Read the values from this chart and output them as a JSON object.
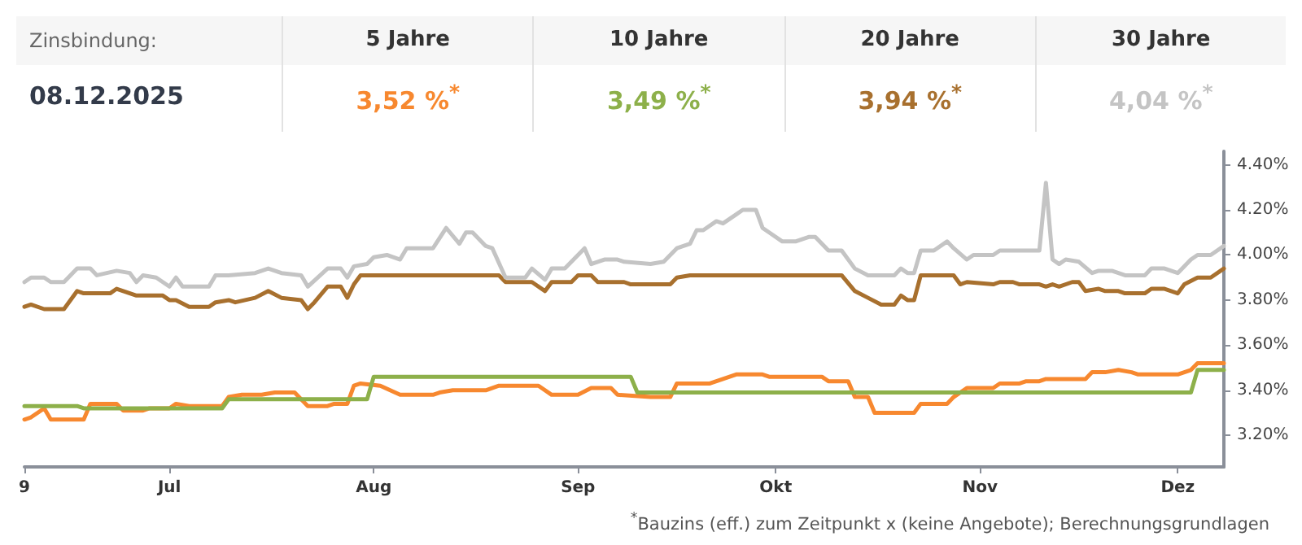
{
  "chart_data": {
    "type": "line",
    "xlim": [
      "2025-06-09",
      "2025-12-08"
    ],
    "xticks": [
      {
        "value": "2025-06-09",
        "label": "9"
      },
      {
        "value": "2025-07-01",
        "label": "Jul"
      },
      {
        "value": "2025-08-01",
        "label": "Aug"
      },
      {
        "value": "2025-09-01",
        "label": "Sep"
      },
      {
        "value": "2025-10-01",
        "label": "Okt"
      },
      {
        "value": "2025-11-01",
        "label": "Nov"
      },
      {
        "value": "2025-12-01",
        "label": "Dez"
      }
    ],
    "ylim": [
      3.06,
      4.46
    ],
    "yticks": [
      {
        "value": 3.2,
        "label": "3.20%"
      },
      {
        "value": 3.4,
        "label": "3.40%"
      },
      {
        "value": 3.6,
        "label": "3.60%"
      },
      {
        "value": 3.8,
        "label": "3.80%"
      },
      {
        "value": 4.0,
        "label": "4.00%"
      },
      {
        "value": 4.2,
        "label": "4.20%"
      },
      {
        "value": 4.4,
        "label": "4.40%"
      }
    ],
    "grid": false,
    "marker": "none",
    "line_style": "solid",
    "series": [
      {
        "color": "#f7882f",
        "x": [
          "2025-06-09",
          "2025-06-10",
          "2025-06-12",
          "2025-06-13",
          "2025-06-18",
          "2025-06-19",
          "2025-06-23",
          "2025-06-24",
          "2025-06-27",
          "2025-06-28",
          "2025-07-01",
          "2025-07-02",
          "2025-07-04",
          "2025-07-09",
          "2025-07-10",
          "2025-07-12",
          "2025-07-15",
          "2025-07-17",
          "2025-07-20",
          "2025-07-22",
          "2025-07-25",
          "2025-07-26",
          "2025-07-28",
          "2025-07-29",
          "2025-07-30",
          "2025-08-02",
          "2025-08-05",
          "2025-08-10",
          "2025-08-11",
          "2025-08-13",
          "2025-08-18",
          "2025-08-20",
          "2025-08-25",
          "2025-08-26",
          "2025-08-28",
          "2025-09-01",
          "2025-09-03",
          "2025-09-06",
          "2025-09-07",
          "2025-09-12",
          "2025-09-15",
          "2025-09-16",
          "2025-09-21",
          "2025-09-23",
          "2025-09-25",
          "2025-09-29",
          "2025-09-30",
          "2025-10-08",
          "2025-10-09",
          "2025-10-12",
          "2025-10-13",
          "2025-10-15",
          "2025-10-16",
          "2025-10-22",
          "2025-10-23",
          "2025-10-27",
          "2025-10-28",
          "2025-10-30",
          "2025-11-03",
          "2025-11-04",
          "2025-11-07",
          "2025-11-08",
          "2025-11-10",
          "2025-11-11",
          "2025-11-17",
          "2025-11-18",
          "2025-11-20",
          "2025-11-22",
          "2025-11-24",
          "2025-11-25",
          "2025-12-01",
          "2025-12-03",
          "2025-12-04",
          "2025-12-08"
        ],
        "values": [
          3.27,
          3.28,
          3.32,
          3.27,
          3.27,
          3.34,
          3.34,
          3.31,
          3.31,
          3.32,
          3.32,
          3.34,
          3.33,
          3.33,
          3.37,
          3.38,
          3.38,
          3.39,
          3.39,
          3.33,
          3.33,
          3.34,
          3.34,
          3.42,
          3.43,
          3.42,
          3.38,
          3.38,
          3.39,
          3.4,
          3.4,
          3.42,
          3.42,
          3.42,
          3.38,
          3.38,
          3.41,
          3.41,
          3.38,
          3.37,
          3.37,
          3.43,
          3.43,
          3.45,
          3.47,
          3.47,
          3.46,
          3.46,
          3.44,
          3.44,
          3.37,
          3.37,
          3.3,
          3.3,
          3.34,
          3.34,
          3.37,
          3.41,
          3.41,
          3.43,
          3.43,
          3.44,
          3.44,
          3.45,
          3.45,
          3.48,
          3.48,
          3.49,
          3.48,
          3.47,
          3.47,
          3.49,
          3.52,
          3.52
        ]
      },
      {
        "color": "#8db04a",
        "x": [
          "2025-06-09",
          "2025-06-17",
          "2025-06-18",
          "2025-07-09",
          "2025-07-10",
          "2025-07-31",
          "2025-08-01",
          "2025-09-09",
          "2025-09-10",
          "2025-12-03",
          "2025-12-04",
          "2025-12-08"
        ],
        "values": [
          3.33,
          3.33,
          3.32,
          3.32,
          3.36,
          3.36,
          3.46,
          3.46,
          3.39,
          3.39,
          3.49,
          3.49
        ]
      },
      {
        "color": "#a8702e",
        "x": [
          "2025-06-09",
          "2025-06-10",
          "2025-06-12",
          "2025-06-15",
          "2025-06-17",
          "2025-06-18",
          "2025-06-22",
          "2025-06-23",
          "2025-06-26",
          "2025-06-30",
          "2025-07-01",
          "2025-07-02",
          "2025-07-04",
          "2025-07-07",
          "2025-07-08",
          "2025-07-10",
          "2025-07-11",
          "2025-07-14",
          "2025-07-16",
          "2025-07-18",
          "2025-07-21",
          "2025-07-22",
          "2025-07-23",
          "2025-07-25",
          "2025-07-27",
          "2025-07-28",
          "2025-07-29",
          "2025-07-30",
          "2025-08-20",
          "2025-08-21",
          "2025-08-25",
          "2025-08-27",
          "2025-08-28",
          "2025-08-31",
          "2025-09-01",
          "2025-09-03",
          "2025-09-04",
          "2025-09-08",
          "2025-09-09",
          "2025-09-15",
          "2025-09-16",
          "2025-09-18",
          "2025-10-11",
          "2025-10-13",
          "2025-10-15",
          "2025-10-17",
          "2025-10-19",
          "2025-10-20",
          "2025-10-21",
          "2025-10-22",
          "2025-10-23",
          "2025-10-28",
          "2025-10-29",
          "2025-10-30",
          "2025-11-03",
          "2025-11-04",
          "2025-11-06",
          "2025-11-07",
          "2025-11-10",
          "2025-11-11",
          "2025-11-12",
          "2025-11-13",
          "2025-11-15",
          "2025-11-16",
          "2025-11-17",
          "2025-11-19",
          "2025-11-20",
          "2025-11-22",
          "2025-11-23",
          "2025-11-26",
          "2025-11-27",
          "2025-11-29",
          "2025-12-01",
          "2025-12-02",
          "2025-12-04",
          "2025-12-06",
          "2025-12-08"
        ],
        "values": [
          3.77,
          3.78,
          3.76,
          3.76,
          3.84,
          3.83,
          3.83,
          3.85,
          3.82,
          3.82,
          3.8,
          3.8,
          3.77,
          3.77,
          3.79,
          3.8,
          3.79,
          3.81,
          3.84,
          3.81,
          3.8,
          3.76,
          3.79,
          3.86,
          3.86,
          3.81,
          3.87,
          3.91,
          3.91,
          3.88,
          3.88,
          3.84,
          3.88,
          3.88,
          3.91,
          3.91,
          3.88,
          3.88,
          3.87,
          3.87,
          3.9,
          3.91,
          3.91,
          3.84,
          3.81,
          3.78,
          3.78,
          3.82,
          3.8,
          3.8,
          3.91,
          3.91,
          3.87,
          3.88,
          3.87,
          3.88,
          3.88,
          3.87,
          3.87,
          3.86,
          3.87,
          3.86,
          3.88,
          3.88,
          3.84,
          3.85,
          3.84,
          3.84,
          3.83,
          3.83,
          3.85,
          3.85,
          3.83,
          3.87,
          3.9,
          3.9,
          3.94
        ]
      },
      {
        "color": "#c4c4c4",
        "x": [
          "2025-06-09",
          "2025-06-10",
          "2025-06-12",
          "2025-06-13",
          "2025-06-15",
          "2025-06-17",
          "2025-06-19",
          "2025-06-20",
          "2025-06-23",
          "2025-06-25",
          "2025-06-26",
          "2025-06-27",
          "2025-06-29",
          "2025-07-01",
          "2025-07-02",
          "2025-07-03",
          "2025-07-07",
          "2025-07-08",
          "2025-07-10",
          "2025-07-14",
          "2025-07-16",
          "2025-07-18",
          "2025-07-21",
          "2025-07-22",
          "2025-07-25",
          "2025-07-27",
          "2025-07-28",
          "2025-07-29",
          "2025-07-31",
          "2025-08-01",
          "2025-08-03",
          "2025-08-05",
          "2025-08-06",
          "2025-08-10",
          "2025-08-12",
          "2025-08-14",
          "2025-08-15",
          "2025-08-16",
          "2025-08-18",
          "2025-08-19",
          "2025-08-21",
          "2025-08-24",
          "2025-08-25",
          "2025-08-27",
          "2025-08-28",
          "2025-08-30",
          "2025-09-02",
          "2025-09-03",
          "2025-09-05",
          "2025-09-07",
          "2025-09-08",
          "2025-09-12",
          "2025-09-14",
          "2025-09-16",
          "2025-09-18",
          "2025-09-19",
          "2025-09-20",
          "2025-09-22",
          "2025-09-23",
          "2025-09-25",
          "2025-09-26",
          "2025-09-28",
          "2025-09-29",
          "2025-09-30",
          "2025-10-02",
          "2025-10-04",
          "2025-10-06",
          "2025-10-07",
          "2025-10-09",
          "2025-10-11",
          "2025-10-13",
          "2025-10-15",
          "2025-10-19",
          "2025-10-20",
          "2025-10-21",
          "2025-10-22",
          "2025-10-23",
          "2025-10-25",
          "2025-10-27",
          "2025-10-28",
          "2025-10-30",
          "2025-10-31",
          "2025-11-03",
          "2025-11-04",
          "2025-11-10",
          "2025-11-11",
          "2025-11-12",
          "2025-11-13",
          "2025-11-14",
          "2025-11-16",
          "2025-11-18",
          "2025-11-19",
          "2025-11-21",
          "2025-11-23",
          "2025-11-26",
          "2025-11-27",
          "2025-11-29",
          "2025-12-01",
          "2025-12-03",
          "2025-12-04",
          "2025-12-06",
          "2025-12-08"
        ],
        "values": [
          3.88,
          3.9,
          3.9,
          3.88,
          3.88,
          3.94,
          3.94,
          3.91,
          3.93,
          3.92,
          3.88,
          3.91,
          3.9,
          3.86,
          3.9,
          3.86,
          3.86,
          3.91,
          3.91,
          3.92,
          3.94,
          3.92,
          3.91,
          3.86,
          3.94,
          3.94,
          3.9,
          3.95,
          3.96,
          3.99,
          4.0,
          3.98,
          4.03,
          4.03,
          4.12,
          4.05,
          4.1,
          4.1,
          4.04,
          4.03,
          3.9,
          3.9,
          3.94,
          3.89,
          3.94,
          3.94,
          4.03,
          3.96,
          3.98,
          3.98,
          3.97,
          3.96,
          3.97,
          4.03,
          4.05,
          4.11,
          4.11,
          4.15,
          4.14,
          4.18,
          4.2,
          4.2,
          4.12,
          4.1,
          4.06,
          4.06,
          4.08,
          4.08,
          4.02,
          4.02,
          3.94,
          3.91,
          3.91,
          3.94,
          3.92,
          3.92,
          4.02,
          4.02,
          4.06,
          4.03,
          3.98,
          4.0,
          4.0,
          4.02,
          4.02,
          4.32,
          3.98,
          3.96,
          3.98,
          3.97,
          3.92,
          3.93,
          3.93,
          3.91,
          3.91,
          3.94,
          3.94,
          3.92,
          3.98,
          4.0,
          4.0,
          4.04
        ]
      }
    ],
    "annotations": [
      "Zinsbindung:",
      "5 Jahre",
      "10 Jahre",
      "20 Jahre",
      "30 Jahre",
      "08.12.2025",
      "3,52 %$^{*}$",
      "3,49 %$^{*}$",
      "3,94 %$^{*}$",
      "4,04 %$^{*}$",
      "$^{*}$Bauzins (eff.) zum Zeitpunkt x (keine Angebote); Berechnungsgrundlagen"
    ]
  }
}
